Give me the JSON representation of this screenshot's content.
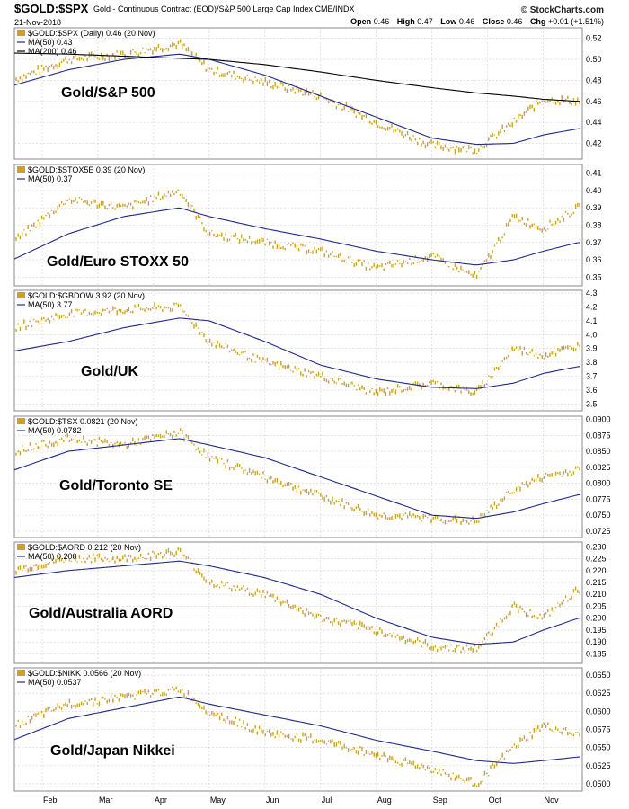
{
  "header": {
    "symbol": "$GOLD:$SPX",
    "description": "Gold - Continuous Contract (EOD)/S&P 500 Large Cap Index  CME/INDX",
    "date": "21-Nov-2018",
    "brand": "© StockCharts.com",
    "ohlc": {
      "open": "0.46",
      "high": "0.47",
      "low": "0.46",
      "close": "0.46",
      "chg": "+0.01 (+1.51%)"
    }
  },
  "x_axis": {
    "months": [
      "Feb",
      "Mar",
      "Apr",
      "May",
      "Jun",
      "Jul",
      "Aug",
      "Sep",
      "Oct",
      "Nov"
    ]
  },
  "colors": {
    "price": "#c9a227",
    "ma50": "#1f2a8a",
    "ma200": "#000000",
    "grid": "#d0d0d0",
    "frame": "#888888"
  },
  "chart_data": [
    {
      "type": "line",
      "name": "Gold/S&P 500",
      "legend": [
        "$GOLD:$SPX (Daily) 0.46 (20 Nov)",
        "MA(50) 0.43",
        "MA(200) 0.46"
      ],
      "yticks": [
        "0.52",
        "0.50",
        "0.48",
        "0.46",
        "0.44",
        "0.42"
      ],
      "ylim": [
        0.405,
        0.53
      ],
      "x": [
        "Jan 15",
        "Feb 15",
        "Mar 15",
        "Apr 15",
        "May 1",
        "Jun 1",
        "Jul 1",
        "Aug 1",
        "Sep 1",
        "Sep 25",
        "Oct 15",
        "Nov 1",
        "Nov 20"
      ],
      "series": [
        {
          "name": "$GOLD:$SPX",
          "values": [
            0.48,
            0.5,
            0.505,
            0.515,
            0.49,
            0.478,
            0.465,
            0.44,
            0.418,
            0.414,
            0.44,
            0.462,
            0.46
          ]
        },
        {
          "name": "MA(50)",
          "values": [
            0.475,
            0.49,
            0.5,
            0.505,
            0.5,
            0.485,
            0.465,
            0.445,
            0.425,
            0.419,
            0.42,
            0.428,
            0.434
          ]
        },
        {
          "name": "MA(200)",
          "values": [
            0.506,
            0.505,
            0.503,
            0.501,
            0.5,
            0.495,
            0.488,
            0.48,
            0.473,
            0.468,
            0.465,
            0.462,
            0.46
          ]
        }
      ]
    },
    {
      "type": "line",
      "name": "Gold/Euro STOXX 50",
      "legend": [
        "$GOLD:$STOX5E 0.39 (20 Nov)",
        "MA(50) 0.37"
      ],
      "yticks": [
        "0.41",
        "0.40",
        "0.39",
        "0.38",
        "0.37",
        "0.36",
        "0.35"
      ],
      "ylim": [
        0.345,
        0.415
      ],
      "x": [
        "Jan 15",
        "Feb 15",
        "Mar 15",
        "Apr 15",
        "May 1",
        "Jun 1",
        "Jul 1",
        "Aug 1",
        "Sep 1",
        "Sep 25",
        "Oct 15",
        "Nov 1",
        "Nov 20"
      ],
      "series": [
        {
          "name": "$GOLD:$STOX5E",
          "values": [
            0.37,
            0.395,
            0.39,
            0.4,
            0.375,
            0.37,
            0.365,
            0.355,
            0.362,
            0.35,
            0.385,
            0.378,
            0.39
          ]
        },
        {
          "name": "MA(50)",
          "values": [
            0.36,
            0.375,
            0.385,
            0.39,
            0.385,
            0.378,
            0.372,
            0.365,
            0.36,
            0.357,
            0.36,
            0.365,
            0.37
          ]
        }
      ]
    },
    {
      "type": "line",
      "name": "Gold/UK",
      "legend": [
        "$GOLD:$GBDOW 3.92 (20 Nov)",
        "MA(50) 3.77"
      ],
      "yticks": [
        "4.3",
        "4.2",
        "4.1",
        "4.0",
        "3.9",
        "3.8",
        "3.7",
        "3.6",
        "3.5"
      ],
      "ylim": [
        3.45,
        4.32
      ],
      "x": [
        "Jan 15",
        "Feb 15",
        "Mar 15",
        "Apr 15",
        "May 1",
        "Jun 1",
        "Jul 1",
        "Aug 1",
        "Sep 1",
        "Sep 25",
        "Oct 15",
        "Nov 1",
        "Nov 20"
      ],
      "series": [
        {
          "name": "$GOLD:$GBDOW",
          "values": [
            4.05,
            4.15,
            4.18,
            4.2,
            3.95,
            3.8,
            3.7,
            3.58,
            3.65,
            3.58,
            3.9,
            3.85,
            3.92
          ]
        },
        {
          "name": "MA(50)",
          "values": [
            3.88,
            3.95,
            4.05,
            4.12,
            4.1,
            3.95,
            3.78,
            3.68,
            3.62,
            3.61,
            3.65,
            3.72,
            3.77
          ]
        }
      ]
    },
    {
      "type": "line",
      "name": "Gold/Toronto SE",
      "legend": [
        "$GOLD:$TSX 0.0821 (20 Nov)",
        "MA(50) 0.0782"
      ],
      "yticks": [
        "0.0900",
        "0.0875",
        "0.0850",
        "0.0825",
        "0.0800",
        "0.0775",
        "0.0750",
        "0.0725"
      ],
      "ylim": [
        0.0715,
        0.0905
      ],
      "x": [
        "Jan 15",
        "Feb 15",
        "Mar 15",
        "Apr 15",
        "May 1",
        "Jun 1",
        "Jul 1",
        "Aug 1",
        "Sep 1",
        "Sep 25",
        "Oct 15",
        "Nov 1",
        "Nov 20"
      ],
      "series": [
        {
          "name": "$GOLD:$TSX",
          "values": [
            0.085,
            0.087,
            0.086,
            0.088,
            0.084,
            0.081,
            0.078,
            0.075,
            0.0745,
            0.074,
            0.079,
            0.081,
            0.0821
          ]
        },
        {
          "name": "MA(50)",
          "values": [
            0.082,
            0.085,
            0.086,
            0.087,
            0.086,
            0.084,
            0.081,
            0.078,
            0.075,
            0.0745,
            0.0755,
            0.0768,
            0.0782
          ]
        }
      ]
    },
    {
      "type": "line",
      "name": "Gold/Australia AORD",
      "legend": [
        "$GOLD:$AORD 0.212 (20 Nov)",
        "MA(50) 0.200"
      ],
      "yticks": [
        "0.230",
        "0.225",
        "0.220",
        "0.215",
        "0.210",
        "0.205",
        "0.200",
        "0.195",
        "0.190",
        "0.185"
      ],
      "ylim": [
        0.181,
        0.232
      ],
      "x": [
        "Jan 15",
        "Feb 15",
        "Mar 15",
        "Apr 15",
        "May 1",
        "Jun 1",
        "Jul 1",
        "Aug 1",
        "Sep 1",
        "Sep 25",
        "Oct 15",
        "Nov 1",
        "Nov 20"
      ],
      "series": [
        {
          "name": "$GOLD:$AORD",
          "values": [
            0.22,
            0.225,
            0.225,
            0.228,
            0.215,
            0.21,
            0.2,
            0.195,
            0.188,
            0.187,
            0.205,
            0.2,
            0.212
          ]
        },
        {
          "name": "MA(50)",
          "values": [
            0.217,
            0.22,
            0.222,
            0.224,
            0.222,
            0.217,
            0.21,
            0.2,
            0.192,
            0.189,
            0.19,
            0.195,
            0.2
          ]
        }
      ]
    },
    {
      "type": "line",
      "name": "Gold/Japan Nikkei",
      "legend": [
        "$GOLD:$NIKK 0.0566 (20 Nov)",
        "MA(50) 0.0537"
      ],
      "yticks": [
        "0.0650",
        "0.0625",
        "0.0600",
        "0.0575",
        "0.0550",
        "0.0525",
        "0.0500"
      ],
      "ylim": [
        0.049,
        0.066
      ],
      "x": [
        "Jan 15",
        "Feb 15",
        "Mar 15",
        "Apr 15",
        "May 1",
        "Jun 1",
        "Jul 1",
        "Aug 1",
        "Sep 1",
        "Sep 25",
        "Oct 15",
        "Nov 1",
        "Nov 20"
      ],
      "series": [
        {
          "name": "$GOLD:$NIKK",
          "values": [
            0.058,
            0.061,
            0.062,
            0.063,
            0.06,
            0.057,
            0.056,
            0.054,
            0.052,
            0.05,
            0.055,
            0.058,
            0.0566
          ]
        },
        {
          "name": "MA(50)",
          "values": [
            0.056,
            0.059,
            0.0605,
            0.062,
            0.061,
            0.0595,
            0.058,
            0.056,
            0.0545,
            0.0532,
            0.0528,
            0.0532,
            0.0537
          ]
        }
      ]
    }
  ]
}
